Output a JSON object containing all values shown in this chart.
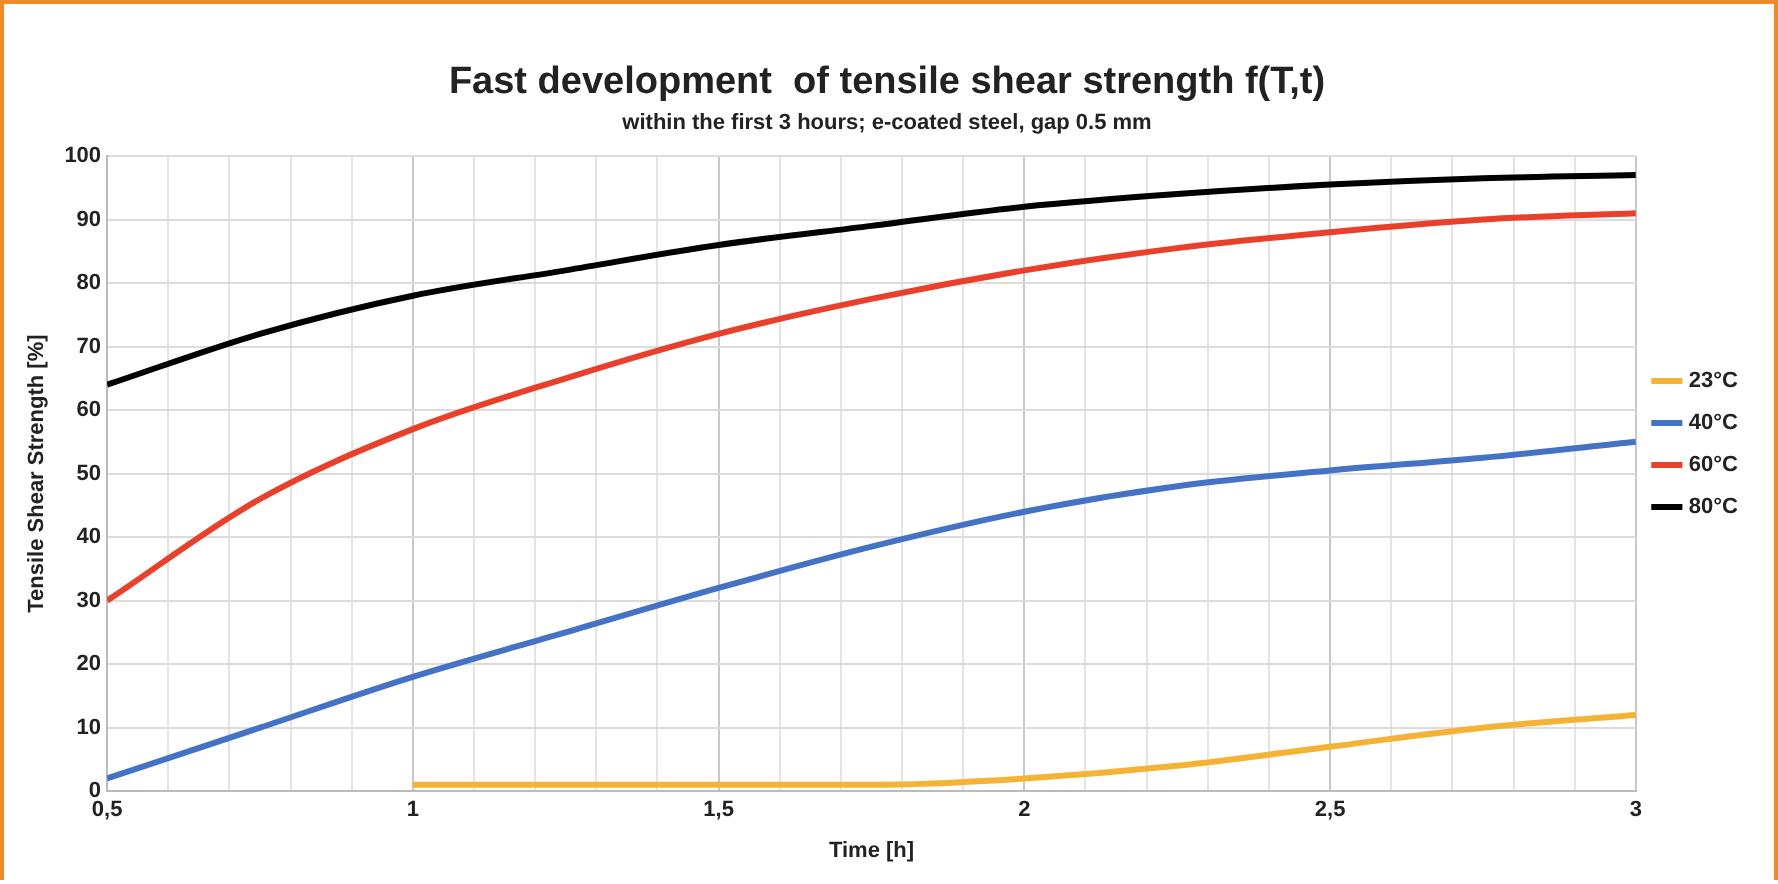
{
  "chart_data": {
    "type": "line",
    "title": "Fast development  of tensile shear strength f(T,t)",
    "subtitle": "within the first 3 hours; e-coated steel, gap 0.5 mm",
    "xlabel": "Time [h]",
    "ylabel": "Tensile Shear Strength [%]",
    "x": [
      0.5,
      0.75,
      1,
      1.25,
      1.5,
      1.75,
      2,
      2.25,
      2.5,
      2.75,
      3
    ],
    "series": [
      {
        "name": "23°C",
        "color": "#f5b335",
        "x": [
          1,
          1.25,
          1.5,
          1.75,
          2,
          2.25,
          2.5,
          2.75,
          3
        ],
        "values": [
          1,
          1,
          1,
          1,
          2,
          4,
          7,
          10,
          12
        ]
      },
      {
        "name": "40°C",
        "color": "#4472c4",
        "values": [
          2,
          10,
          18,
          25,
          32,
          38.5,
          44,
          48,
          50.5,
          52.5,
          55
        ]
      },
      {
        "name": "60°C",
        "color": "#e8402a",
        "values": [
          30,
          46,
          57,
          65,
          72,
          77.5,
          82,
          85.5,
          88,
          90,
          91
        ]
      },
      {
        "name": "80°C",
        "color": "#000000",
        "values": [
          64,
          72,
          78,
          82,
          86,
          89,
          92,
          94,
          95.5,
          96.5,
          97
        ]
      }
    ],
    "xlim": [
      0.5,
      3
    ],
    "xticks": [
      {
        "value": 0.5,
        "label": "0,5"
      },
      {
        "value": 0.6,
        "label": null
      },
      {
        "value": 0.7,
        "label": null
      },
      {
        "value": 0.8,
        "label": null
      },
      {
        "value": 0.9,
        "label": null
      },
      1,
      {
        "value": 1.1,
        "label": null
      },
      {
        "value": 1.2,
        "label": null
      },
      {
        "value": 1.3,
        "label": null
      },
      {
        "value": 1.4,
        "label": null
      },
      {
        "value": 1.5,
        "label": "1,5"
      },
      {
        "value": 1.6,
        "label": null
      },
      {
        "value": 1.7,
        "label": null
      },
      {
        "value": 1.8,
        "label": null
      },
      {
        "value": 1.9,
        "label": null
      },
      2,
      {
        "value": 2.1,
        "label": null
      },
      {
        "value": 2.2,
        "label": null
      },
      {
        "value": 2.3,
        "label": null
      },
      {
        "value": 2.4,
        "label": null
      },
      {
        "value": 2.5,
        "label": "2,5"
      },
      {
        "value": 2.6,
        "label": null
      },
      {
        "value": 2.7,
        "label": null
      },
      {
        "value": 2.8,
        "label": null
      },
      {
        "value": 2.9,
        "label": null
      },
      3
    ],
    "ylim": [
      0,
      100
    ],
    "yticks": [
      0,
      10,
      20,
      30,
      40,
      50,
      60,
      70,
      80,
      90,
      100
    ],
    "grid": true,
    "legend": "right",
    "marker": "none",
    "line_style": "solid"
  }
}
